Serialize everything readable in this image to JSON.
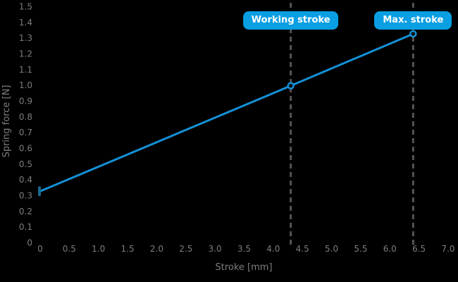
{
  "colors": {
    "background": "#000000",
    "line_blue": "#1590d5",
    "box_blue": "#0a9ee3",
    "tick_gray": "#7d7d7d",
    "dash_gray": "#555555",
    "marker_fill": "#0e0e0e",
    "start_marker_blue": "#19688c",
    "annotation_text": "#ffffff"
  },
  "chart_data": {
    "type": "line",
    "title": "",
    "xlabel": "Stroke [mm]",
    "ylabel": "Spring force [N]",
    "xlim": [
      0,
      7.0
    ],
    "ylim": [
      0,
      1.5
    ],
    "grid": false,
    "x_ticks": [
      "0",
      "0.5",
      "1.0",
      "1.5",
      "2.0",
      "2.5",
      "3.0",
      "3.5",
      "4.0",
      "4.5",
      "5.0",
      "5.5",
      "6.0",
      "6.5",
      "7.0"
    ],
    "y_ticks": [
      "0",
      "0.1",
      "0.2",
      "0.3",
      "0.4",
      "0.5",
      "0.6",
      "0.7",
      "0.8",
      "0.9",
      "1.0",
      "1.1",
      "1.2",
      "1.3",
      "1.4",
      "1.5"
    ],
    "series": [
      {
        "name": "spring-force",
        "points": [
          [
            0,
            0.33
          ],
          [
            4.3,
            1.0
          ],
          [
            6.4,
            1.33
          ]
        ]
      }
    ],
    "annotations": [
      {
        "label": "Working stroke",
        "x": 4.3
      },
      {
        "label": "Max. stroke",
        "x": 6.4
      }
    ]
  }
}
